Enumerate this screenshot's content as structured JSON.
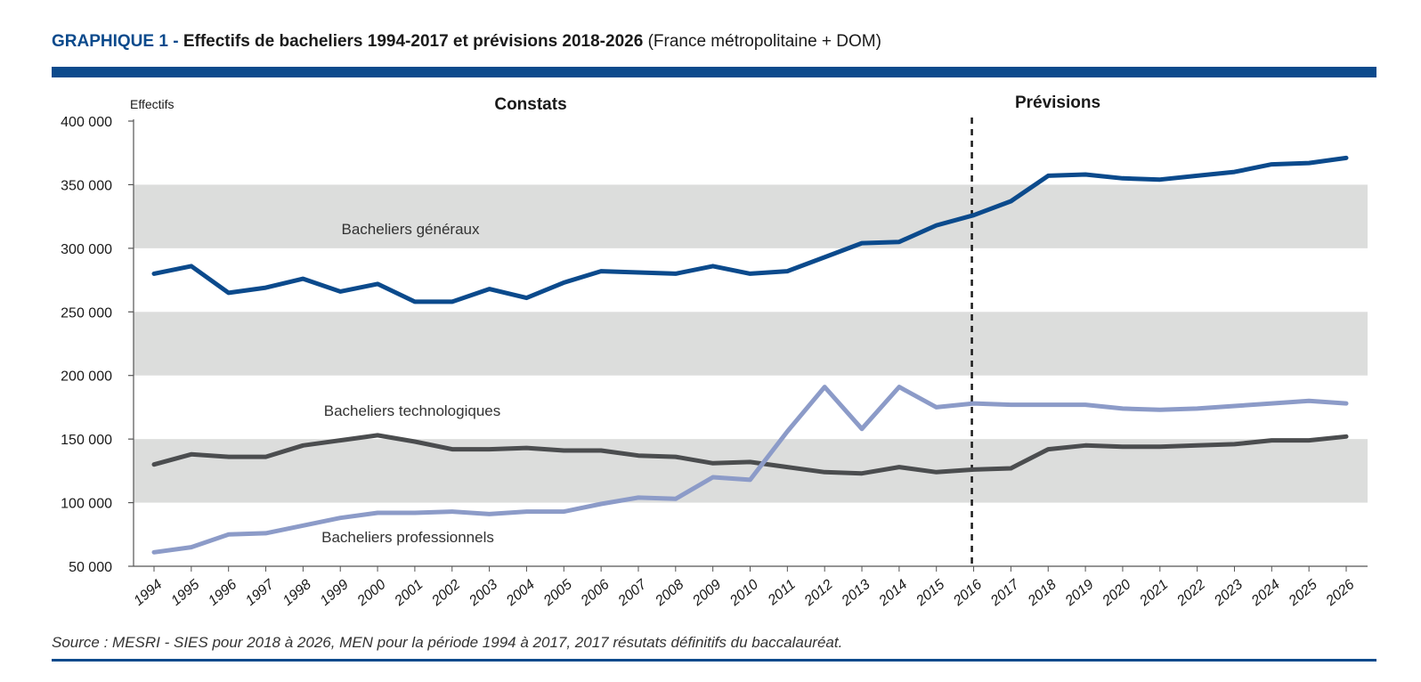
{
  "header": {
    "tag": "GRAPHIQUE 1 -",
    "title": "Effectifs de bacheliers 1994-2017 et prévisions 2018-2026",
    "subtitle": "(France métropolitaine + DOM)"
  },
  "source": "Source : MESRI - SIES pour 2018 à 2026, MEN pour la période 1994 à 2017, 2017 résutats définitifs du baccalauréat.",
  "chart_data": {
    "type": "line",
    "ylabel": "Effectifs",
    "ylim": [
      50000,
      400000
    ],
    "yticks": [
      50000,
      100000,
      150000,
      200000,
      250000,
      300000,
      350000,
      400000
    ],
    "ytick_labels": [
      "50 000",
      "100 000",
      "150 000",
      "200 000",
      "250 000",
      "300 000",
      "350 000",
      "400 000"
    ],
    "x": [
      "1994",
      "1995",
      "1996",
      "1997",
      "1998",
      "1999",
      "2000",
      "2001",
      "2002",
      "2003",
      "2004",
      "2005",
      "2006",
      "2007",
      "2008",
      "2009",
      "2010",
      "2011",
      "2012",
      "2013",
      "2014",
      "2015",
      "2016",
      "2017",
      "2018",
      "2019",
      "2020",
      "2021",
      "2022",
      "2023",
      "2024",
      "2025",
      "2026"
    ],
    "sections": [
      {
        "label": "Constats"
      },
      {
        "label": "Prévisions"
      }
    ],
    "forecast_divider_at": "2016",
    "grid": "alternating horizontal bands",
    "series": [
      {
        "name": "Bacheliers généraux",
        "color": "#0b4a8c",
        "values": [
          280000,
          286000,
          265000,
          269000,
          276000,
          266000,
          272000,
          258000,
          258000,
          268000,
          261000,
          273000,
          282000,
          281000,
          280000,
          286000,
          280000,
          282000,
          293000,
          304000,
          305000,
          318000,
          326000,
          337000,
          357000,
          358000,
          355000,
          354000,
          357000,
          360000,
          366000,
          367000,
          371000
        ]
      },
      {
        "name": "Bacheliers technologiques",
        "color": "#4b4d4f",
        "values": [
          130000,
          138000,
          136000,
          136000,
          145000,
          149000,
          153000,
          148000,
          142000,
          142000,
          143000,
          141000,
          141000,
          137000,
          136000,
          131000,
          132000,
          128000,
          124000,
          123000,
          128000,
          124000,
          126000,
          127000,
          142000,
          145000,
          144000,
          144000,
          145000,
          146000,
          149000,
          149000,
          152000
        ]
      },
      {
        "name": "Bacheliers professionnels",
        "color": "#8c9bc8",
        "values": [
          61000,
          65000,
          75000,
          76000,
          82000,
          88000,
          92000,
          92000,
          93000,
          91000,
          93000,
          93000,
          99000,
          104000,
          103000,
          120000,
          118000,
          156000,
          191000,
          158000,
          191000,
          175000,
          178000,
          177000,
          177000,
          177000,
          174000,
          173000,
          174000,
          176000,
          178000,
          180000,
          178000
        ]
      }
    ]
  }
}
